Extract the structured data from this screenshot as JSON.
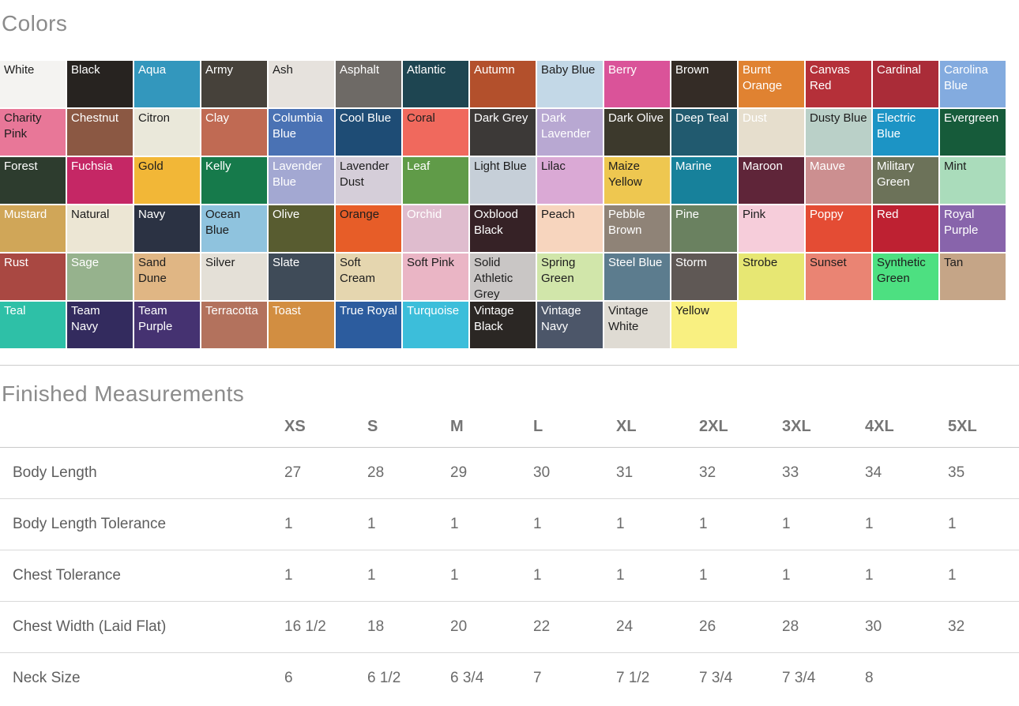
{
  "titles": {
    "colors": "Colors",
    "measurements": "Finished Measurements"
  },
  "colors": [
    {
      "name": "White",
      "hex": "#f4f3f1",
      "text": "dark"
    },
    {
      "name": "Black",
      "hex": "#272320",
      "text": "light"
    },
    {
      "name": "Aqua",
      "hex": "#3397bd",
      "text": "light"
    },
    {
      "name": "Army",
      "hex": "#46413a",
      "text": "light"
    },
    {
      "name": "Ash",
      "hex": "#e6e2dd",
      "text": "dark"
    },
    {
      "name": "Asphalt",
      "hex": "#6e6a66",
      "text": "light"
    },
    {
      "name": "Atlantic",
      "hex": "#1e4551",
      "text": "light"
    },
    {
      "name": "Autumn",
      "hex": "#b3502c",
      "text": "light"
    },
    {
      "name": "Baby Blue",
      "hex": "#c3d8e7",
      "text": "dark"
    },
    {
      "name": "Berry",
      "hex": "#da5399",
      "text": "light"
    },
    {
      "name": "Brown",
      "hex": "#342c26",
      "text": "light"
    },
    {
      "name": "Burnt Orange",
      "hex": "#e08231",
      "text": "light"
    },
    {
      "name": "Canvas Red",
      "hex": "#b53039",
      "text": "light"
    },
    {
      "name": "Cardinal",
      "hex": "#aa2c38",
      "text": "light"
    },
    {
      "name": "Carolina Blue",
      "hex": "#83abdf",
      "text": "light"
    },
    {
      "name": "Charity Pink",
      "hex": "#e87798",
      "text": "dark"
    },
    {
      "name": "Chestnut",
      "hex": "#8b5843",
      "text": "light"
    },
    {
      "name": "Citron",
      "hex": "#eae8da",
      "text": "dark"
    },
    {
      "name": "Clay",
      "hex": "#c06a53",
      "text": "light"
    },
    {
      "name": "Columbia Blue",
      "hex": "#4a72b4",
      "text": "light"
    },
    {
      "name": "Cool Blue",
      "hex": "#1e4c75",
      "text": "light"
    },
    {
      "name": "Coral",
      "hex": "#f0695d",
      "text": "dark"
    },
    {
      "name": "Dark Grey",
      "hex": "#3c3937",
      "text": "light"
    },
    {
      "name": "Dark Lavender",
      "hex": "#b8a8d2",
      "text": "light"
    },
    {
      "name": "Dark Olive",
      "hex": "#3c392c",
      "text": "light"
    },
    {
      "name": "Deep Teal",
      "hex": "#215a6f",
      "text": "light"
    },
    {
      "name": "Dust",
      "hex": "#e6decd",
      "text": "light"
    },
    {
      "name": "Dusty Blue",
      "hex": "#bad0c8",
      "text": "dark"
    },
    {
      "name": "Electric Blue",
      "hex": "#1c94c5",
      "text": "light"
    },
    {
      "name": "Evergreen",
      "hex": "#165b3a",
      "text": "light"
    },
    {
      "name": "Forest",
      "hex": "#2d3c2e",
      "text": "light"
    },
    {
      "name": "Fuchsia",
      "hex": "#c52765",
      "text": "light"
    },
    {
      "name": "Gold",
      "hex": "#f2b737",
      "text": "dark"
    },
    {
      "name": "Kelly",
      "hex": "#167a4b",
      "text": "light"
    },
    {
      "name": "Lavender Blue",
      "hex": "#a3a8d2",
      "text": "light"
    },
    {
      "name": "Lavender Dust",
      "hex": "#d5ced9",
      "text": "dark"
    },
    {
      "name": "Leaf",
      "hex": "#609b48",
      "text": "light"
    },
    {
      "name": "Light Blue",
      "hex": "#c6cfd8",
      "text": "dark"
    },
    {
      "name": "Lilac",
      "hex": "#daa9d5",
      "text": "dark"
    },
    {
      "name": "Maize Yellow",
      "hex": "#eec750",
      "text": "dark"
    },
    {
      "name": "Marine",
      "hex": "#17819b",
      "text": "light"
    },
    {
      "name": "Maroon",
      "hex": "#5f2539",
      "text": "light"
    },
    {
      "name": "Mauve",
      "hex": "#cc8f90",
      "text": "light"
    },
    {
      "name": "Military Green",
      "hex": "#6c7259",
      "text": "light"
    },
    {
      "name": "Mint",
      "hex": "#aadcbb",
      "text": "dark"
    },
    {
      "name": "Mustard",
      "hex": "#d0a658",
      "text": "light"
    },
    {
      "name": "Natural",
      "hex": "#ece6d4",
      "text": "dark"
    },
    {
      "name": "Navy",
      "hex": "#2b3243",
      "text": "light"
    },
    {
      "name": "Ocean Blue",
      "hex": "#8fc3de",
      "text": "dark"
    },
    {
      "name": "Olive",
      "hex": "#585c30",
      "text": "light"
    },
    {
      "name": "Orange",
      "hex": "#e75d28",
      "text": "dark"
    },
    {
      "name": "Orchid",
      "hex": "#dfbcce",
      "text": "light"
    },
    {
      "name": "Oxblood Black",
      "hex": "#362226",
      "text": "light"
    },
    {
      "name": "Peach",
      "hex": "#f7d5be",
      "text": "dark"
    },
    {
      "name": "Pebble Brown",
      "hex": "#8f8377",
      "text": "light"
    },
    {
      "name": "Pine",
      "hex": "#6a8160",
      "text": "light"
    },
    {
      "name": "Pink",
      "hex": "#f6cdda",
      "text": "dark"
    },
    {
      "name": "Poppy",
      "hex": "#e44c34",
      "text": "light"
    },
    {
      "name": "Red",
      "hex": "#be2132",
      "text": "light"
    },
    {
      "name": "Royal Purple",
      "hex": "#8864ab",
      "text": "light"
    },
    {
      "name": "Rust",
      "hex": "#a94842",
      "text": "light"
    },
    {
      "name": "Sage",
      "hex": "#96b28d",
      "text": "light"
    },
    {
      "name": "Sand Dune",
      "hex": "#e0b684",
      "text": "dark"
    },
    {
      "name": "Silver",
      "hex": "#e4e0d7",
      "text": "dark"
    },
    {
      "name": "Slate",
      "hex": "#3f4b58",
      "text": "light"
    },
    {
      "name": "Soft Cream",
      "hex": "#e5d6af",
      "text": "dark"
    },
    {
      "name": "Soft Pink",
      "hex": "#eab5c5",
      "text": "dark"
    },
    {
      "name": "Solid Athletic Grey",
      "hex": "#c9c6c5",
      "text": "dark"
    },
    {
      "name": "Spring Green",
      "hex": "#d1e6aa",
      "text": "dark"
    },
    {
      "name": "Steel Blue",
      "hex": "#5c7c8e",
      "text": "light"
    },
    {
      "name": "Storm",
      "hex": "#5f5855",
      "text": "light"
    },
    {
      "name": "Strobe",
      "hex": "#e7e773",
      "text": "dark"
    },
    {
      "name": "Sunset",
      "hex": "#ea8473",
      "text": "dark"
    },
    {
      "name": "Synthetic Green",
      "hex": "#4de081",
      "text": "dark"
    },
    {
      "name": "Tan",
      "hex": "#c5a587",
      "text": "dark"
    },
    {
      "name": "Teal",
      "hex": "#2ec0a7",
      "text": "light"
    },
    {
      "name": "Team Navy",
      "hex": "#332b5e",
      "text": "light"
    },
    {
      "name": "Team Purple",
      "hex": "#453271",
      "text": "light"
    },
    {
      "name": "Terracotta",
      "hex": "#b3725d",
      "text": "light"
    },
    {
      "name": "Toast",
      "hex": "#d28e41",
      "text": "light"
    },
    {
      "name": "True Royal",
      "hex": "#2c5c9e",
      "text": "light"
    },
    {
      "name": "Turquoise",
      "hex": "#3cbeda",
      "text": "light"
    },
    {
      "name": "Vintage Black",
      "hex": "#2b2724",
      "text": "light"
    },
    {
      "name": "Vintage Navy",
      "hex": "#4c5669",
      "text": "light"
    },
    {
      "name": "Vintage White",
      "hex": "#dfdbd3",
      "text": "dark"
    },
    {
      "name": "Yellow",
      "hex": "#f9f081",
      "text": "dark"
    }
  ],
  "measurements": {
    "sizes": [
      "XS",
      "S",
      "M",
      "L",
      "XL",
      "2XL",
      "3XL",
      "4XL",
      "5XL"
    ],
    "rows": [
      {
        "label": "Body Length",
        "values": [
          "27",
          "28",
          "29",
          "30",
          "31",
          "32",
          "33",
          "34",
          "35"
        ]
      },
      {
        "label": "Body Length Tolerance",
        "values": [
          "1",
          "1",
          "1",
          "1",
          "1",
          "1",
          "1",
          "1",
          "1"
        ]
      },
      {
        "label": "Chest Tolerance",
        "values": [
          "1",
          "1",
          "1",
          "1",
          "1",
          "1",
          "1",
          "1",
          "1"
        ]
      },
      {
        "label": "Chest Width (Laid Flat)",
        "values": [
          "16 1/2",
          "18",
          "20",
          "22",
          "24",
          "26",
          "28",
          "30",
          "32"
        ]
      },
      {
        "label": "Neck Size",
        "values": [
          "6",
          "6 1/2",
          "6 3/4",
          "7",
          "7 1/2",
          "7 3/4",
          "7 3/4",
          "8",
          ""
        ]
      }
    ]
  }
}
